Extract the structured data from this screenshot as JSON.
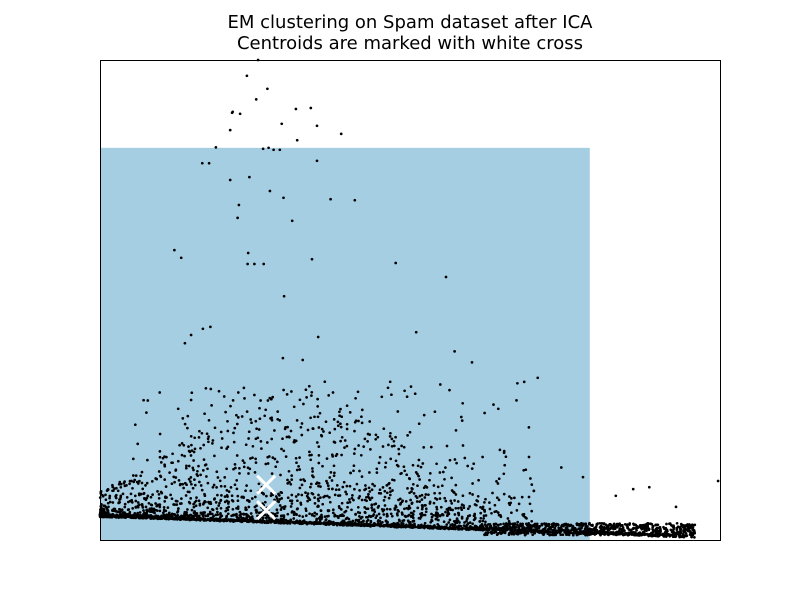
{
  "chart_data": {
    "type": "scatter",
    "title": "EM clustering on Spam dataset after ICA",
    "subtitle": "Centroids are marked with white cross",
    "xlabel": "",
    "ylabel": "",
    "xlim": [
      0,
      1
    ],
    "ylim": [
      0,
      1
    ],
    "axis_ticks": "hidden",
    "grid": false,
    "legend": "none",
    "colors": {
      "region": "#a6cee3",
      "points": "#000000",
      "centroid": "#ffffff",
      "axes": "#000000"
    },
    "regions": [
      {
        "label": "cluster-0",
        "xmin": 0.0,
        "xmax": 0.79,
        "ymin": 0.0,
        "ymax": 0.817
      }
    ],
    "centroids": [
      {
        "x": 0.268,
        "y": 0.115
      },
      {
        "x": 0.268,
        "y": 0.062
      }
    ],
    "outlier_points": [
      [
        0.255,
        1.0
      ],
      [
        0.237,
        0.967
      ],
      [
        0.214,
        0.892
      ],
      [
        0.226,
        0.888
      ],
      [
        0.213,
        0.89
      ],
      [
        0.27,
        0.94
      ],
      [
        0.252,
        0.918
      ],
      [
        0.21,
        0.854
      ],
      [
        0.187,
        0.818
      ],
      [
        0.176,
        0.785
      ],
      [
        0.165,
        0.785
      ],
      [
        0.293,
        0.867
      ],
      [
        0.35,
        0.863
      ],
      [
        0.316,
        0.898
      ],
      [
        0.34,
        0.9
      ],
      [
        0.272,
        0.817
      ],
      [
        0.29,
        0.813
      ],
      [
        0.35,
        0.79
      ],
      [
        0.263,
        0.815
      ],
      [
        0.28,
        0.813
      ],
      [
        0.318,
        0.833
      ],
      [
        0.224,
        0.698
      ],
      [
        0.21,
        0.75
      ],
      [
        0.241,
        0.756
      ],
      [
        0.222,
        0.671
      ],
      [
        0.274,
        0.727
      ],
      [
        0.296,
        0.713
      ],
      [
        0.31,
        0.665
      ],
      [
        0.389,
        0.846
      ],
      [
        0.372,
        0.71
      ],
      [
        0.411,
        0.708
      ],
      [
        0.12,
        0.604
      ],
      [
        0.131,
        0.588
      ],
      [
        0.239,
        0.598
      ],
      [
        0.264,
        0.575
      ],
      [
        0.249,
        0.575
      ],
      [
        0.238,
        0.575
      ],
      [
        0.342,
        0.585
      ],
      [
        0.477,
        0.577
      ],
      [
        0.558,
        0.548
      ],
      [
        0.352,
        0.423
      ],
      [
        0.297,
        0.508
      ],
      [
        0.147,
        0.427
      ],
      [
        0.137,
        0.41
      ],
      [
        0.178,
        0.444
      ],
      [
        0.166,
        0.44
      ],
      [
        0.192,
        0.31
      ],
      [
        0.233,
        0.295
      ],
      [
        0.249,
        0.302
      ],
      [
        0.295,
        0.379
      ],
      [
        0.327,
        0.375
      ],
      [
        0.51,
        0.433
      ],
      [
        0.572,
        0.393
      ],
      [
        0.6,
        0.37
      ],
      [
        0.706,
        0.338
      ],
      [
        0.633,
        0.098
      ],
      [
        0.832,
        0.092
      ],
      [
        0.86,
        0.106
      ],
      [
        0.779,
        0.131
      ],
      [
        0.744,
        0.151
      ],
      [
        0.886,
        0.11
      ],
      [
        0.929,
        0.069
      ],
      [
        0.997,
        0.123
      ]
    ],
    "dense_point_count": 3200
  }
}
